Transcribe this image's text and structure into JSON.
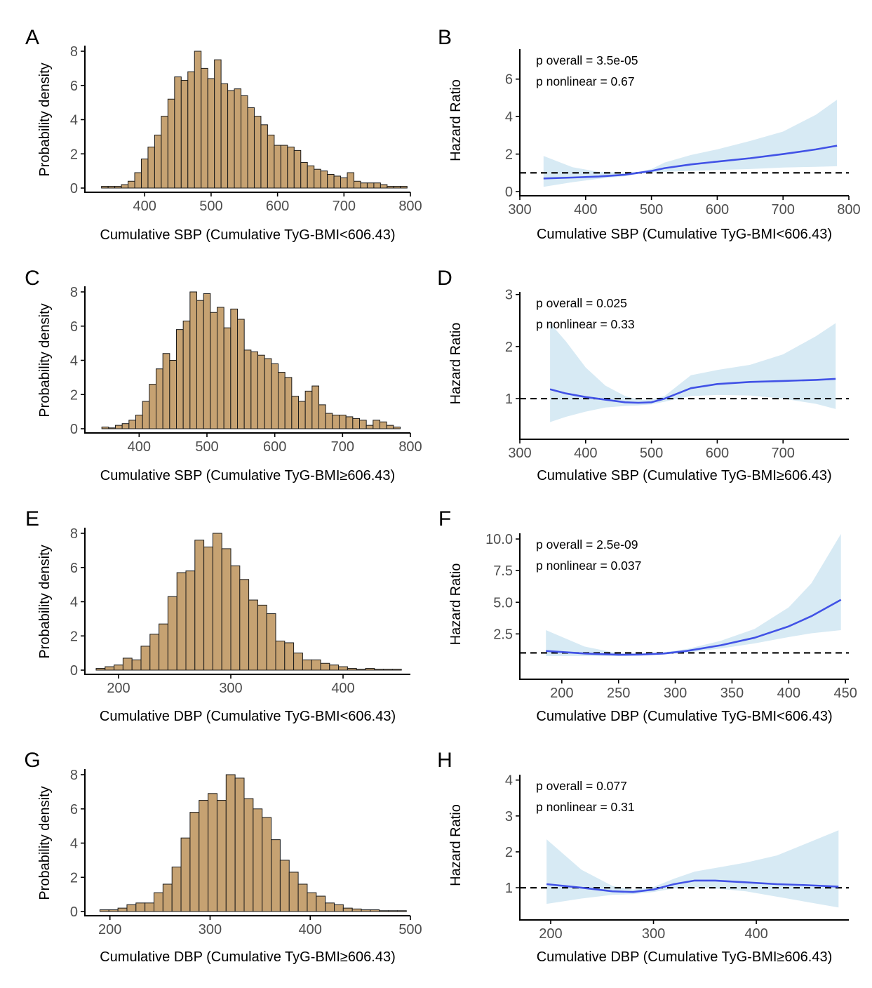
{
  "chart_data": [
    {
      "panel": "A",
      "type": "bar",
      "title": "",
      "xlabel": "Cumulative SBP (Cumulative TyG-BMI<606.43)",
      "ylabel": "Probability density",
      "xlim": [
        310,
        800
      ],
      "ylim": [
        0,
        8
      ],
      "xticks": [
        400,
        500,
        600,
        700,
        800
      ],
      "yticks": [
        0,
        2,
        4,
        6,
        8
      ],
      "bin_start": 335,
      "bin_width": 10,
      "values": [
        0.1,
        0.1,
        0.1,
        0.2,
        0.4,
        0.9,
        1.7,
        2.4,
        3.1,
        4.2,
        5.2,
        6.5,
        6.3,
        6.8,
        8.0,
        7.0,
        6.4,
        7.5,
        6.1,
        5.7,
        5.8,
        5.4,
        4.7,
        4.2,
        3.7,
        3.1,
        2.5,
        2.5,
        2.4,
        2.2,
        1.5,
        1.3,
        1.1,
        1.0,
        0.8,
        0.7,
        0.6,
        0.9,
        0.4,
        0.3,
        0.3,
        0.3,
        0.2,
        0.1,
        0.1,
        0.1
      ]
    },
    {
      "panel": "B",
      "type": "line",
      "title": "",
      "xlabel": "Cumulative SBP (Cumulative TyG-BMI<606.43)",
      "ylabel": "Hazard Ratio",
      "xlim": [
        300,
        800
      ],
      "ylim": [
        0,
        7.6
      ],
      "xticks": [
        300,
        400,
        500,
        600,
        700,
        800
      ],
      "yticks": [
        0,
        2,
        4,
        6
      ],
      "reference_line": 1,
      "annotations": [
        "p overall = 3.5e-05",
        "p nonlinear = 0.67"
      ],
      "x": [
        336,
        380,
        420,
        460,
        480,
        500,
        520,
        560,
        600,
        650,
        700,
        750,
        782
      ],
      "y": [
        0.7,
        0.75,
        0.8,
        0.9,
        1.0,
        1.1,
        1.25,
        1.45,
        1.6,
        1.78,
        2.0,
        2.25,
        2.45
      ],
      "lower": [
        0.25,
        0.5,
        0.68,
        0.82,
        0.95,
        1.02,
        1.06,
        1.1,
        1.15,
        1.2,
        1.28,
        1.32,
        1.35
      ],
      "upper": [
        1.9,
        1.3,
        1.05,
        1.0,
        1.05,
        1.2,
        1.55,
        1.95,
        2.25,
        2.7,
        3.2,
        4.1,
        4.9
      ]
    },
    {
      "panel": "C",
      "type": "bar",
      "title": "",
      "xlabel": "Cumulative SBP (Cumulative TyG-BMI≥606.43)",
      "ylabel": "Probability density",
      "xlim": [
        320,
        800
      ],
      "ylim": [
        0,
        8
      ],
      "xticks": [
        400,
        500,
        600,
        700,
        800
      ],
      "yticks": [
        0,
        2,
        4,
        6,
        8
      ],
      "bin_start": 345,
      "bin_width": 10,
      "values": [
        0.1,
        0.05,
        0.2,
        0.3,
        0.5,
        0.8,
        1.6,
        2.6,
        3.5,
        4.4,
        4.0,
        5.8,
        6.3,
        8.0,
        7.5,
        7.9,
        6.8,
        7.1,
        5.9,
        7.0,
        6.4,
        4.6,
        4.5,
        4.3,
        4.1,
        3.8,
        3.3,
        3.0,
        1.9,
        1.6,
        2.2,
        2.5,
        1.4,
        0.9,
        0.8,
        0.8,
        0.7,
        0.6,
        0.5,
        0.2,
        0.5,
        0.4,
        0.2,
        0.1
      ]
    },
    {
      "panel": "D",
      "type": "line",
      "title": "",
      "xlabel": "Cumulative SBP (Cumulative TyG-BMI≥606.43)",
      "ylabel": "Hazard Ratio",
      "xlim": [
        300,
        800
      ],
      "ylim": [
        0.3,
        3.05
      ],
      "xticks": [
        300,
        400,
        500,
        600,
        700
      ],
      "yticks": [
        1,
        2,
        3
      ],
      "reference_line": 1,
      "annotations": [
        "p overall = 0.025",
        "p nonlinear = 0.33"
      ],
      "x": [
        346,
        370,
        400,
        430,
        460,
        480,
        500,
        520,
        540,
        560,
        600,
        650,
        700,
        750,
        780
      ],
      "y": [
        1.18,
        1.1,
        1.03,
        0.98,
        0.93,
        0.92,
        0.93,
        1.0,
        1.1,
        1.2,
        1.28,
        1.32,
        1.34,
        1.36,
        1.38
      ],
      "lower": [
        0.55,
        0.65,
        0.75,
        0.83,
        0.86,
        0.87,
        0.89,
        0.94,
        1.0,
        1.05,
        1.07,
        1.06,
        1.0,
        0.9,
        0.8
      ],
      "upper": [
        2.45,
        2.1,
        1.6,
        1.25,
        1.05,
        0.98,
        0.98,
        1.05,
        1.25,
        1.45,
        1.55,
        1.65,
        1.85,
        2.2,
        2.45
      ]
    },
    {
      "panel": "E",
      "type": "bar",
      "title": "",
      "xlabel": "Cumulative DBP (Cumulative TyG-BMI<606.43)",
      "ylabel": "Probability density",
      "xlim": [
        170,
        460
      ],
      "ylim": [
        0,
        8
      ],
      "xticks": [
        200,
        300,
        400
      ],
      "yticks": [
        0,
        2,
        4,
        6,
        8
      ],
      "bin_start": 180,
      "bin_width": 8,
      "values": [
        0.1,
        0.2,
        0.3,
        0.7,
        0.6,
        1.4,
        2.1,
        2.7,
        4.3,
        5.7,
        5.8,
        7.6,
        7.2,
        8.0,
        7.1,
        6.1,
        5.3,
        4.1,
        3.8,
        3.3,
        1.7,
        1.6,
        1.0,
        0.6,
        0.6,
        0.4,
        0.3,
        0.2,
        0.1,
        0.05,
        0.1,
        0.05,
        0.05,
        0.05
      ]
    },
    {
      "panel": "F",
      "type": "line",
      "title": "",
      "xlabel": "Cumulative DBP (Cumulative TyG-BMI<606.43)",
      "ylabel": "Hazard Ratio",
      "xlim": [
        163,
        453
      ],
      "ylim": [
        -0.75,
        10.45
      ],
      "xticks": [
        200,
        250,
        300,
        350,
        400,
        450
      ],
      "yticks": [
        2.5,
        5.0,
        7.5,
        10.0
      ],
      "ytick_labels": [
        "2.5",
        "5.0",
        "7.5",
        "10.0"
      ],
      "reference_line": 1,
      "annotations": [
        "p overall = 2.5e-09",
        "p nonlinear = 0.037"
      ],
      "x": [
        186,
        220,
        250,
        270,
        290,
        310,
        340,
        370,
        400,
        420,
        446
      ],
      "y": [
        1.15,
        0.95,
        0.85,
        0.87,
        0.95,
        1.15,
        1.6,
        2.2,
        3.1,
        3.9,
        5.2
      ],
      "lower": [
        0.75,
        0.75,
        0.75,
        0.8,
        0.88,
        1.02,
        1.35,
        1.75,
        2.25,
        2.55,
        2.8
      ],
      "upper": [
        2.8,
        1.5,
        0.95,
        0.95,
        1.05,
        1.3,
        1.95,
        2.9,
        4.6,
        6.5,
        10.4
      ]
    },
    {
      "panel": "G",
      "type": "bar",
      "title": "",
      "xlabel": "Cumulative DBP (Cumulative TyG-BMI≥606.43)",
      "ylabel": "Probability density",
      "xlim": [
        175,
        500
      ],
      "ylim": [
        0,
        8
      ],
      "xticks": [
        200,
        300,
        400,
        500
      ],
      "yticks": [
        0,
        2,
        4,
        6,
        8
      ],
      "bin_start": 190,
      "bin_width": 9,
      "values": [
        0.1,
        0.1,
        0.2,
        0.4,
        0.5,
        0.5,
        1.1,
        1.6,
        2.6,
        4.3,
        5.8,
        6.5,
        6.9,
        6.5,
        8.0,
        7.8,
        6.6,
        6.0,
        5.5,
        4.2,
        3.0,
        2.3,
        1.6,
        1.1,
        0.9,
        0.5,
        0.4,
        0.2,
        0.15,
        0.1,
        0.1,
        0.05,
        0.05,
        0.05
      ]
    },
    {
      "panel": "H",
      "type": "line",
      "title": "",
      "xlabel": "Cumulative DBP (Cumulative TyG-BMI≥606.43)",
      "ylabel": "Hazard Ratio",
      "xlim": [
        170,
        490
      ],
      "ylim": [
        0.22,
        4.15
      ],
      "xticks": [
        200,
        300,
        400
      ],
      "yticks": [
        1,
        2,
        3,
        4
      ],
      "reference_line": 1,
      "annotations": [
        "p overall = 0.077",
        "p nonlinear = 0.31"
      ],
      "x": [
        196,
        230,
        260,
        280,
        300,
        320,
        340,
        360,
        390,
        420,
        450,
        480
      ],
      "y": [
        1.1,
        1.0,
        0.9,
        0.88,
        0.95,
        1.1,
        1.2,
        1.2,
        1.15,
        1.1,
        1.07,
        1.03
      ],
      "lower": [
        0.55,
        0.7,
        0.8,
        0.82,
        0.88,
        0.98,
        1.02,
        0.98,
        0.9,
        0.75,
        0.6,
        0.45
      ],
      "upper": [
        2.35,
        1.5,
        1.05,
        0.95,
        1.02,
        1.25,
        1.45,
        1.55,
        1.7,
        1.9,
        2.25,
        2.6
      ]
    }
  ],
  "colors": {
    "bar_fill": "#c6a272",
    "bar_stroke": "#1a1a1a",
    "curve": "#4152e6",
    "ribbon": "#d7eaf4",
    "axis": "#000000",
    "tick_label": "#4d4d4d",
    "reference_line": "#000000"
  }
}
